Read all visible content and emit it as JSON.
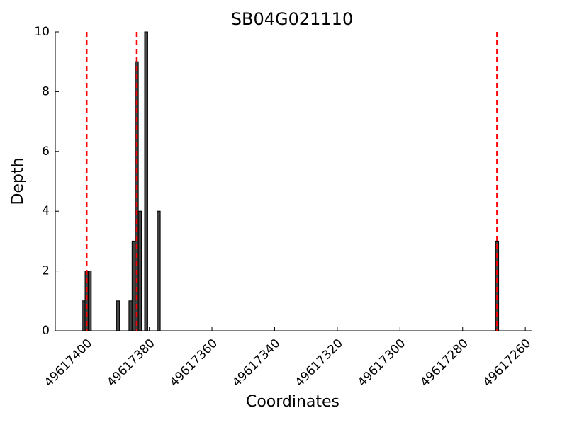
{
  "chart_data": {
    "type": "bar",
    "title": "SB04G021110",
    "x_label": "Coordinates",
    "y_label": "Depth",
    "x": [
      49617401,
      49617400,
      49617399,
      49617390,
      49617386,
      49617385,
      49617384,
      49617383,
      49617381,
      49617377,
      49617269
    ],
    "values": [
      1,
      2,
      2,
      1,
      1,
      3,
      9,
      4,
      10,
      4,
      3
    ],
    "color": "#444444",
    "xlim": [
      49617410,
      49617258
    ],
    "xticks": [
      49617400,
      49617380,
      49617360,
      49617340,
      49617320,
      49617300,
      49617280,
      49617260
    ],
    "ylim": [
      0,
      10
    ],
    "yticks": [
      0,
      2,
      4,
      6,
      8,
      10
    ],
    "vlines": {
      "x": [
        49617400,
        49617384,
        49617269
      ],
      "color": "#ff0000"
    }
  }
}
